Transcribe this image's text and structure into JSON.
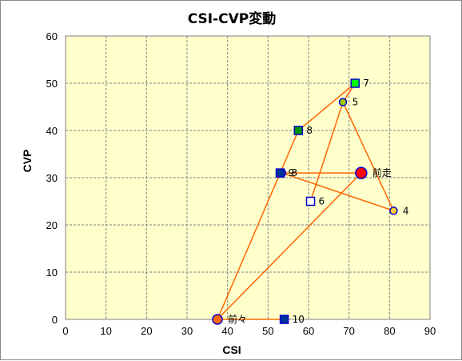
{
  "chart_data": {
    "type": "scatter",
    "title": "CSI-CVP変動",
    "xlabel": "CSI",
    "ylabel": "CVP",
    "xlim": [
      0,
      90
    ],
    "ylim": [
      0,
      60
    ],
    "x_ticks": [
      "0",
      "10",
      "20",
      "30",
      "40",
      "50",
      "60",
      "70",
      "80",
      "90"
    ],
    "y_ticks": [
      "0",
      "10",
      "20",
      "30",
      "40",
      "50",
      "60"
    ],
    "grid": true,
    "plot_background": "#ffffcc",
    "line_color": "#ff6600",
    "path": [
      "10",
      "前々",
      "9",
      "8",
      "7",
      "5",
      "4",
      "3",
      "前走",
      "前々"
    ],
    "extra_segments": [
      [
        "6",
        "5"
      ]
    ],
    "points": [
      {
        "label": "前走",
        "x": 73,
        "y": 31,
        "marker": "circle-large",
        "fill": "#ff0000",
        "stroke": "#0000cc"
      },
      {
        "label": "前々",
        "x": 37.5,
        "y": 0,
        "marker": "circle",
        "fill": "#ff6600",
        "stroke": "#0000cc"
      },
      {
        "label": "3",
        "x": 53.5,
        "y": 31,
        "marker": "circle-small",
        "fill": "#ffcc33",
        "stroke": "#0000cc"
      },
      {
        "label": "4",
        "x": 81,
        "y": 23,
        "marker": "circle-small",
        "fill": "#ffcc33",
        "stroke": "#0000cc"
      },
      {
        "label": "5",
        "x": 68.5,
        "y": 46,
        "marker": "circle-small",
        "fill": "#99cc00",
        "stroke": "#0000cc"
      },
      {
        "label": "6",
        "x": 60.5,
        "y": 25,
        "marker": "square",
        "fill": "#ffffff",
        "stroke": "#0000cc"
      },
      {
        "label": "7",
        "x": 71.5,
        "y": 50,
        "marker": "square",
        "fill": "#00ff00",
        "stroke": "#0000cc"
      },
      {
        "label": "8",
        "x": 57.5,
        "y": 40,
        "marker": "square",
        "fill": "#009900",
        "stroke": "#0000cc"
      },
      {
        "label": "9",
        "x": 53,
        "y": 31,
        "marker": "square",
        "fill": "#003399",
        "stroke": "#0000cc"
      },
      {
        "label": "10",
        "x": 54,
        "y": 0,
        "marker": "square",
        "fill": "#003399",
        "stroke": "#0000cc"
      }
    ]
  }
}
